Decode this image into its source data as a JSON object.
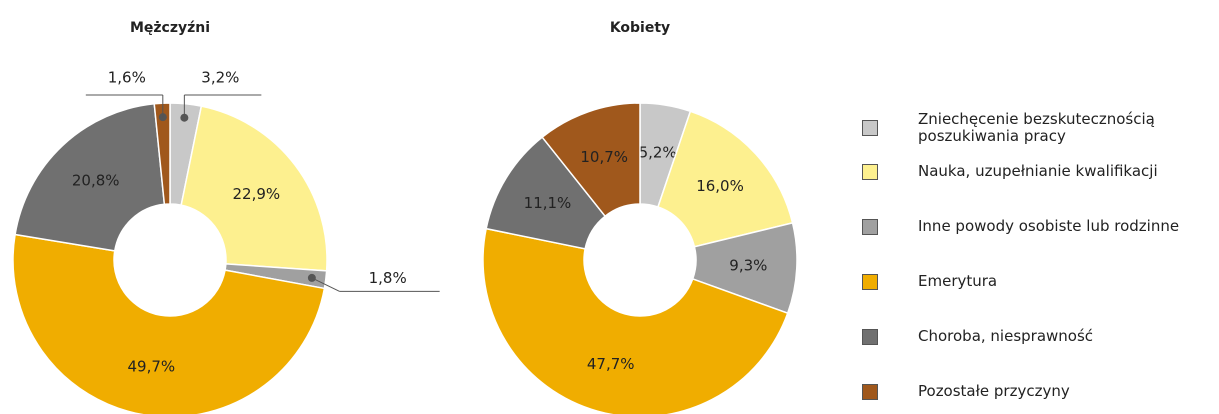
{
  "chart_data": [
    {
      "type": "donut",
      "title": "Mężczyźni",
      "categories": [
        "Zniechęcenie bezskutecznością\nposzukiwania pracy",
        "Nauka, uzupełnianie kwalifikacji",
        "Inne powody osobiste lub rodzinne",
        "Emerytura",
        "Choroba, niesprawność",
        "Pozostałe przyczyny"
      ],
      "values": [
        3.2,
        22.9,
        1.8,
        49.7,
        20.8,
        1.6
      ],
      "value_labels": [
        "3,2%",
        "22,9%",
        "1,8%",
        "49,7%",
        "20,8%",
        "1,6%"
      ],
      "colors": [
        "#c8c8c8",
        "#fdf08f",
        "#a0a0a0",
        "#f0ad00",
        "#707070",
        "#a0581c"
      ]
    },
    {
      "type": "donut",
      "title": "Kobiety",
      "categories": [
        "Zniechęcenie bezskutecznością\nposzukiwania pracy",
        "Nauka, uzupełnianie kwalifikacji",
        "Inne powody osobiste lub rodzinne",
        "Emerytura",
        "Choroba, niesprawność",
        "Pozostałe przyczyny"
      ],
      "values": [
        5.2,
        16.0,
        9.3,
        47.7,
        11.1,
        10.7
      ],
      "value_labels": [
        "5,2%",
        "16,0%",
        "9,3%",
        "47,7%",
        "11,1%",
        "10,7%"
      ],
      "colors": [
        "#c8c8c8",
        "#fdf08f",
        "#a0a0a0",
        "#f0ad00",
        "#707070",
        "#a0581c"
      ]
    }
  ]
}
